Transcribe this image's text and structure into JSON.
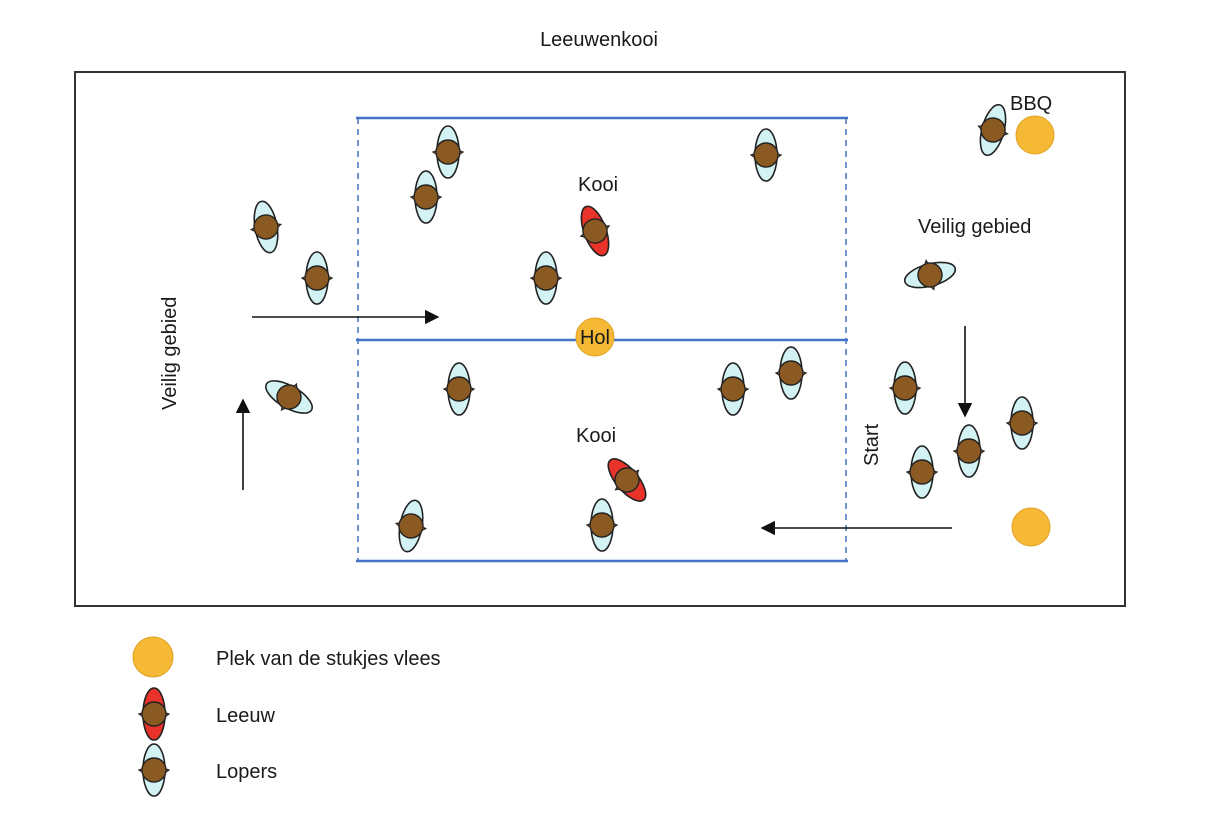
{
  "title": "Leeuwenkooi",
  "labels": {
    "bbq": "BBQ",
    "safe_right": "Veilig gebied",
    "safe_left": "Veilig gebied",
    "cage_top": "Kooi",
    "cage_bottom": "Kooi",
    "den": "Hol",
    "start": "Start"
  },
  "legend": {
    "meat": "Plek van de stukjes vlees",
    "lion": "Leeuw",
    "walkers": "Lopers"
  },
  "colors": {
    "meat": "#f5b935",
    "lion_shell": "#e8322a",
    "walker_shell": "#d3f2f4",
    "body": "#8b5a22",
    "cage_line": "#4472c4",
    "border": "#333333"
  }
}
